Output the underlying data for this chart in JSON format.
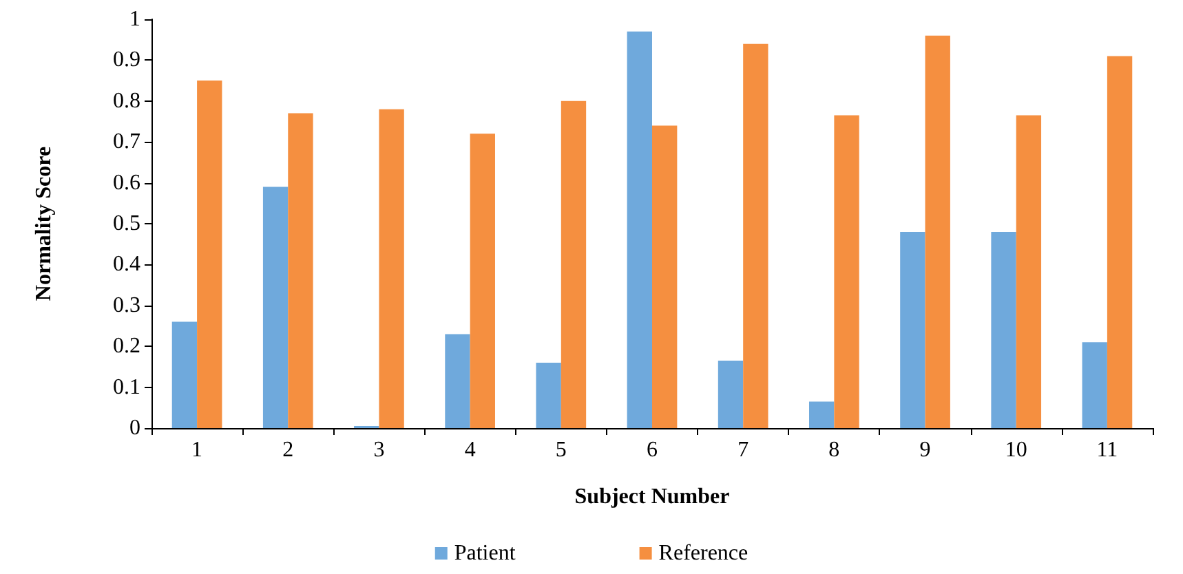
{
  "chart_data": {
    "type": "bar",
    "xlabel": "Subject Number",
    "ylabel": "Normality Score",
    "categories": [
      "1",
      "2",
      "3",
      "4",
      "5",
      "6",
      "7",
      "8",
      "9",
      "10",
      "11"
    ],
    "series": [
      {
        "name": "Patient",
        "color": "#6fa9dc",
        "values": [
          0.26,
          0.59,
          0.005,
          0.23,
          0.16,
          0.97,
          0.165,
          0.065,
          0.48,
          0.48,
          0.21
        ]
      },
      {
        "name": "Reference",
        "color": "#f58f40",
        "values": [
          0.85,
          0.77,
          0.78,
          0.72,
          0.8,
          0.74,
          0.94,
          0.765,
          0.96,
          0.765,
          0.91
        ]
      }
    ],
    "ylim": [
      0,
      1
    ],
    "yticks": [
      0,
      0.1,
      0.2,
      0.3,
      0.4,
      0.5,
      0.6,
      0.7,
      0.8,
      0.9,
      1
    ],
    "grid": false,
    "legend": "bottom"
  }
}
